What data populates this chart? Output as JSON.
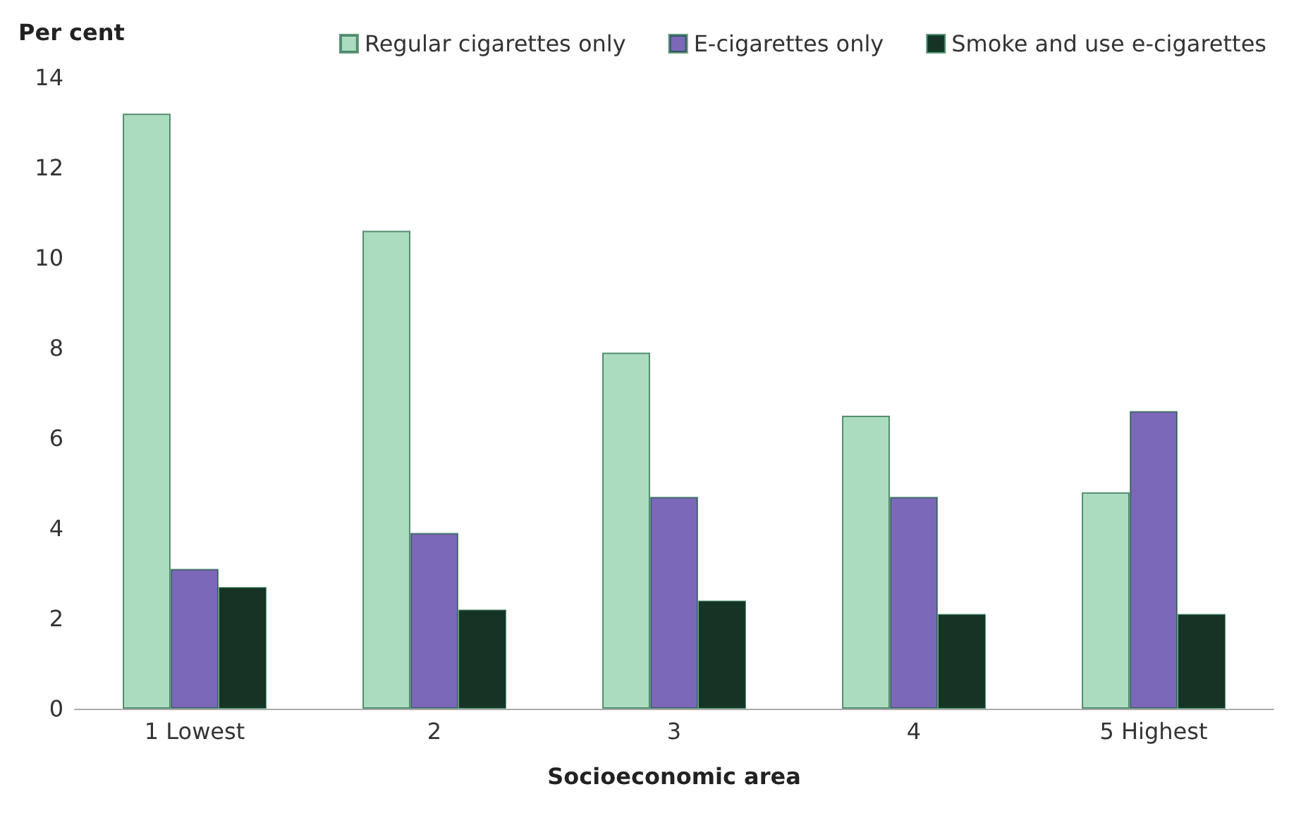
{
  "chart_data": {
    "type": "bar",
    "ylabel": "Per cent",
    "xlabel": "Socioeconomic area",
    "categories": [
      "1 Lowest",
      "2",
      "3",
      "4",
      "5 Highest"
    ],
    "series": [
      {
        "name": "Regular cigarettes only",
        "color": "#acdcc0",
        "values": [
          13.2,
          10.6,
          7.9,
          6.5,
          4.8
        ]
      },
      {
        "name": "E-cigarettes only",
        "color": "#7b68b8",
        "values": [
          3.1,
          3.9,
          4.7,
          4.7,
          6.6
        ]
      },
      {
        "name": "Smoke and use e-cigarettes",
        "color": "#163326",
        "values": [
          2.7,
          2.2,
          2.4,
          2.1,
          2.1
        ]
      }
    ],
    "ylim": [
      0,
      14
    ],
    "yticks": [
      0,
      2,
      4,
      6,
      8,
      10,
      12,
      14
    ],
    "grid": false,
    "legend": "top right"
  }
}
